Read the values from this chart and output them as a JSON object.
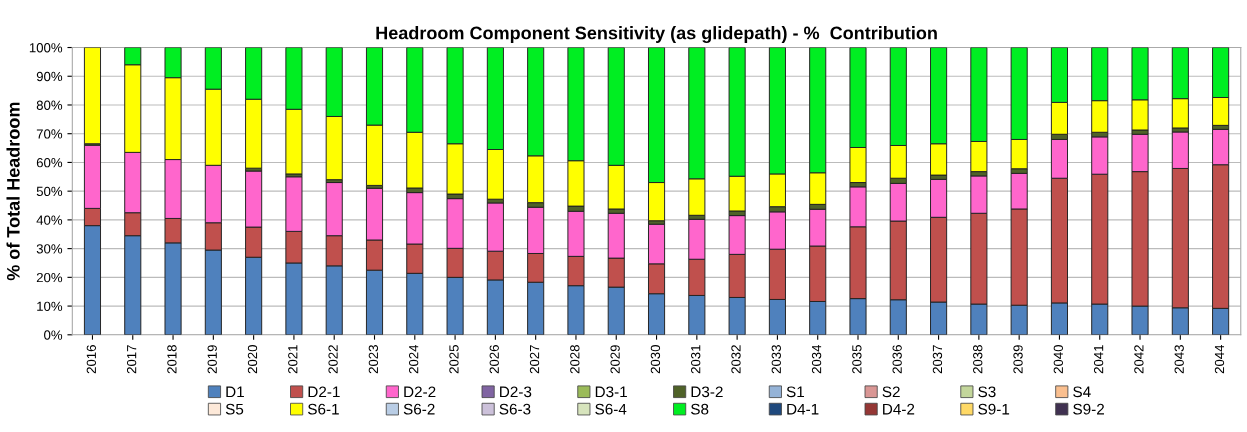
{
  "chart_data": {
    "type": "bar",
    "stacked": true,
    "title": "Headroom Component Sensitivity (as glidepath) - %  Contribution",
    "ylabel": "% of Total Headroom",
    "categories": [
      "2016",
      "2017",
      "2018",
      "2019",
      "2020",
      "2021",
      "2022",
      "2023",
      "2024",
      "2025",
      "2026",
      "2027",
      "2028",
      "2029",
      "2030",
      "2031",
      "2032",
      "2033",
      "2034",
      "2035",
      "2036",
      "2037",
      "2038",
      "2039",
      "2040",
      "2041",
      "2042",
      "2043",
      "2044"
    ],
    "series": [
      {
        "name": "D1",
        "color": "#4f81bd",
        "values": [
          38,
          34.5,
          32,
          29.5,
          27,
          25,
          24,
          22.5,
          21.4,
          20,
          19.1,
          18.3,
          17.1,
          16.6,
          14.3,
          13.7,
          13,
          12.3,
          11.6,
          12.6,
          12.2,
          11.4,
          10.7,
          10.3,
          11.1,
          10.7,
          10,
          9.4,
          9.2
        ]
      },
      {
        "name": "D2-1",
        "color": "#c0504d",
        "values": [
          6,
          8,
          8.5,
          9.5,
          10.5,
          11,
          10.5,
          10.5,
          10.2,
          10.1,
          10,
          10,
          10.2,
          10.1,
          10.4,
          12.6,
          15,
          17.5,
          19.3,
          25,
          27.4,
          29.5,
          31.6,
          33.5,
          43.4,
          45.2,
          46.8,
          48.5,
          50
        ]
      },
      {
        "name": "D2-2",
        "color": "#ff66cc",
        "values": [
          22,
          21,
          20.5,
          20,
          19.5,
          19,
          18.5,
          18,
          17.9,
          17.3,
          16.8,
          16.1,
          15.7,
          15.6,
          13.8,
          13.9,
          13.5,
          13,
          12.8,
          13.9,
          13.1,
          13.2,
          13,
          12.4,
          13.5,
          13,
          13,
          12.7,
          12.3
        ]
      },
      {
        "name": "D2-3",
        "color": "#8064a2",
        "values": [
          0,
          0,
          0,
          0,
          0,
          0,
          0,
          0,
          0,
          0,
          0,
          0,
          0,
          0,
          0,
          0,
          0,
          0,
          0,
          0,
          0,
          0,
          0,
          0,
          0,
          0,
          0,
          0,
          0
        ]
      },
      {
        "name": "D3-1",
        "color": "#9bbb59",
        "values": [
          0,
          0,
          0,
          0,
          0,
          0,
          0,
          0,
          0,
          0,
          0,
          0,
          0,
          0,
          0,
          0,
          0,
          0,
          0,
          0,
          0,
          0,
          0,
          0,
          0,
          0,
          0,
          0,
          0
        ]
      },
      {
        "name": "D3-2",
        "color": "#4f6228",
        "values": [
          0.5,
          null,
          null,
          null,
          1,
          1,
          1,
          1,
          1.6,
          1.6,
          1.3,
          1.6,
          1.8,
          1.5,
          1.2,
          1.4,
          1.6,
          1.8,
          1.7,
          1.5,
          1.8,
          1.5,
          1.5,
          1.6,
          1.8,
          1.6,
          1.5,
          1.4,
          1.4
        ]
      },
      {
        "name": "S1",
        "color": "#95b3d7",
        "values": [
          0,
          0,
          0,
          0,
          0,
          0,
          0,
          0,
          0,
          0,
          0,
          0,
          0,
          0,
          0,
          0,
          0,
          0,
          0,
          0,
          0,
          0,
          0,
          0,
          0,
          0,
          0,
          0,
          0
        ]
      },
      {
        "name": "S2",
        "color": "#d99694",
        "values": [
          0,
          0,
          0,
          0,
          0,
          0,
          0,
          0,
          0,
          0,
          0,
          0,
          0,
          0,
          0,
          0,
          0,
          0,
          0,
          0,
          0,
          0,
          0,
          0,
          0,
          0,
          0,
          0,
          0
        ]
      },
      {
        "name": "S3",
        "color": "#c3d69b",
        "values": [
          0,
          0,
          0,
          0,
          0,
          0,
          0,
          0,
          0,
          0,
          0,
          0,
          0,
          0,
          0,
          0,
          0,
          0,
          0,
          0,
          0,
          0,
          0,
          0,
          0,
          0,
          0,
          0,
          0
        ]
      },
      {
        "name": "S4",
        "color": "#fabf8f",
        "values": [
          0,
          0,
          0,
          0,
          0,
          0,
          0,
          0,
          0,
          0,
          0,
          0,
          0,
          0,
          0,
          0,
          0,
          0,
          0,
          0,
          0,
          0,
          0,
          0,
          0,
          0,
          0,
          0,
          0
        ]
      },
      {
        "name": "S5",
        "color": "#fde9d9",
        "values": [
          0,
          0,
          0,
          0,
          0,
          0,
          0,
          0,
          0,
          0,
          0,
          0,
          0,
          0,
          0,
          0,
          0,
          0,
          0,
          0,
          0,
          0,
          0,
          0,
          0,
          0,
          0,
          0,
          0
        ]
      },
      {
        "name": "S6-1",
        "color": "#ffff00",
        "values": [
          33.5,
          30.5,
          28.5,
          26.5,
          24,
          22.5,
          22,
          21,
          19.4,
          17.5,
          17.3,
          16.3,
          15.8,
          15.2,
          13.3,
          12.7,
          12.1,
          11.4,
          11,
          12.2,
          11.4,
          10.9,
          10.5,
          10.2,
          11.1,
          11,
          10.5,
          10.2,
          9.7
        ]
      },
      {
        "name": "S6-2",
        "color": "#b9cde5",
        "values": [
          0,
          0,
          0,
          0,
          0,
          0,
          0,
          0,
          0,
          0,
          0,
          0,
          0,
          0,
          0,
          0,
          0,
          0,
          0,
          0,
          0,
          0,
          0,
          0,
          0,
          0,
          0,
          0,
          0
        ]
      },
      {
        "name": "S6-3",
        "color": "#ccc1da",
        "values": [
          0,
          0,
          0,
          0,
          0,
          0,
          0,
          0,
          0,
          0,
          0,
          0,
          0,
          0,
          0,
          0,
          0,
          0,
          0,
          0,
          0,
          0,
          0,
          0,
          0,
          0,
          0,
          0,
          0
        ]
      },
      {
        "name": "S6-4",
        "color": "#d7e4bd",
        "values": [
          0,
          0,
          0,
          0,
          0,
          0,
          0,
          0,
          0,
          0,
          0,
          0,
          0,
          0,
          0,
          0,
          0,
          0,
          0,
          0,
          0,
          0,
          0,
          0,
          0,
          0,
          0,
          0,
          0
        ]
      },
      {
        "name": "S8",
        "color": "#00ee22",
        "values": [
          0,
          6,
          10.5,
          14.5,
          18,
          21.5,
          24,
          27,
          29.5,
          33.5,
          35.5,
          37.7,
          39.4,
          41,
          47,
          45.7,
          44.8,
          44,
          43.6,
          34.8,
          34.1,
          33.5,
          32.7,
          32,
          19.1,
          18.5,
          18.2,
          17.8,
          17.4
        ]
      },
      {
        "name": "D4-1",
        "color": "#1f497d",
        "values": [
          0,
          0,
          0,
          0,
          0,
          0,
          0,
          0,
          0,
          0,
          0,
          0,
          0,
          0,
          0,
          0,
          0,
          0,
          0,
          0,
          0,
          0,
          0,
          0,
          0,
          0,
          0,
          0,
          0
        ]
      },
      {
        "name": "D4-2",
        "color": "#953735",
        "values": [
          0,
          0,
          0,
          0,
          0,
          0,
          0,
          0,
          0,
          0,
          0,
          0,
          0,
          0,
          0,
          0,
          0,
          0,
          0,
          0,
          0,
          0,
          0,
          0,
          0,
          0,
          0,
          0,
          0
        ]
      },
      {
        "name": "S9-1",
        "color": "#ffd966",
        "values": [
          0,
          0,
          0,
          0,
          0,
          0,
          0,
          0,
          0,
          0,
          0,
          0,
          0,
          0,
          0,
          0,
          0,
          0,
          0,
          0,
          0,
          0,
          0,
          0,
          0,
          0,
          0,
          0,
          0
        ]
      },
      {
        "name": "S9-2",
        "color": "#403151",
        "values": [
          0,
          0,
          0,
          0,
          0,
          0,
          0,
          0,
          0,
          0,
          0,
          0,
          0,
          0,
          0,
          0,
          0,
          0,
          0,
          0,
          0,
          0,
          0,
          0,
          0,
          0,
          0,
          0,
          0
        ]
      }
    ],
    "ylim": [
      0,
      100
    ],
    "yticks": [
      {
        "value": 0,
        "label": "0%"
      },
      {
        "value": 10,
        "label": "10%"
      },
      {
        "value": 20,
        "label": "20%"
      },
      {
        "value": 30,
        "label": "30%"
      },
      {
        "value": 40,
        "label": "40%"
      },
      {
        "value": 50,
        "label": "50%"
      },
      {
        "value": 60,
        "label": "60%"
      },
      {
        "value": 70,
        "label": "70%"
      },
      {
        "value": 80,
        "label": "80%"
      },
      {
        "value": 90,
        "label": "90%"
      },
      {
        "value": 100,
        "label": "100%"
      }
    ],
    "grid": "y",
    "legend": "bottom"
  }
}
